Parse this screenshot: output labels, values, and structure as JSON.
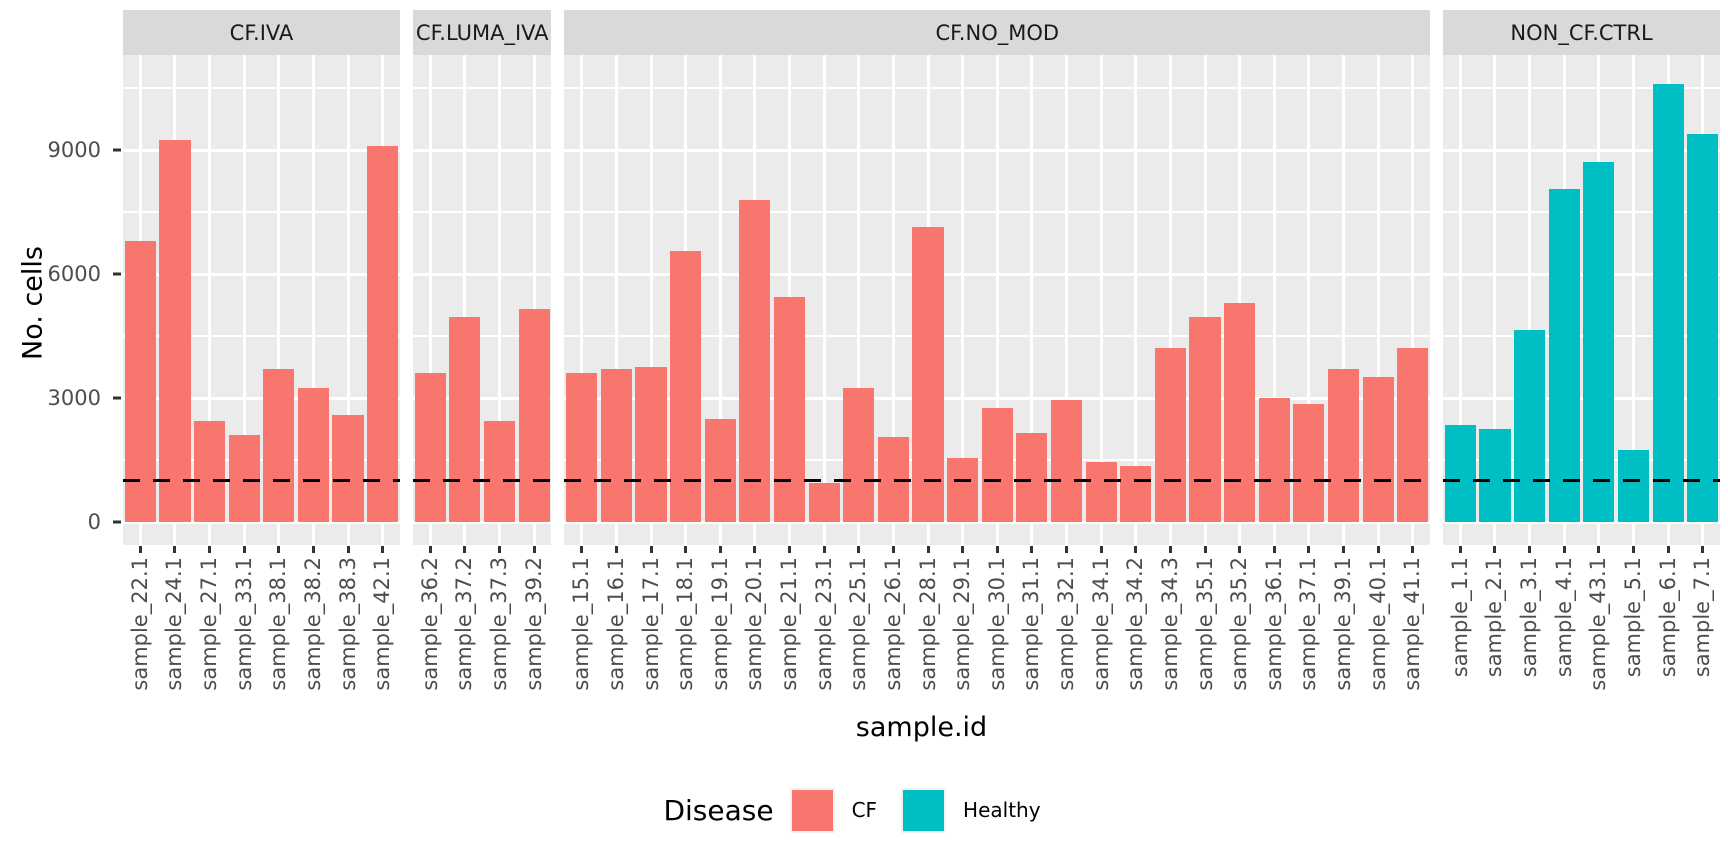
{
  "chart_data": {
    "type": "bar",
    "title": "",
    "xlabel": "sample.id",
    "ylabel": "No. cells",
    "y_ticks": [
      0,
      3000,
      6000,
      9000
    ],
    "y_minor_ticks": [
      1500,
      4500,
      7500,
      10500
    ],
    "ylim": [
      0,
      11300
    ],
    "grid": "on",
    "panel_bg_color": "#EBEBEB",
    "strip_bg_color": "#D9D9D9",
    "grid_color": "#FFFFFF",
    "tick_label_color": "#4D4D4D",
    "hline": {
      "value": 1000,
      "style": "dashed",
      "color": "#000000"
    },
    "legend": {
      "title": "Disease",
      "position": "bottom",
      "entries": [
        {
          "label": "CF",
          "color": "#F8766D"
        },
        {
          "label": "Healthy",
          "color": "#00BFC4"
        }
      ]
    },
    "facets": [
      {
        "label": "CF.IVA",
        "group": "CF",
        "color": "#F8766D",
        "categories": [
          "sample_22.1",
          "sample_24.1",
          "sample_27.1",
          "sample_33.1",
          "sample_38.1",
          "sample_38.2",
          "sample_38.3",
          "sample_42.1"
        ],
        "values": [
          6800,
          9250,
          2450,
          2100,
          3700,
          3250,
          2600,
          9100
        ]
      },
      {
        "label": "CF.LUMA_IVA",
        "group": "CF",
        "color": "#F8766D",
        "categories": [
          "sample_36.2",
          "sample_37.2",
          "sample_37.3",
          "sample_39.2"
        ],
        "values": [
          3600,
          4950,
          2450,
          5150
        ]
      },
      {
        "label": "CF.NO_MOD",
        "group": "CF",
        "color": "#F8766D",
        "categories": [
          "sample_15.1",
          "sample_16.1",
          "sample_17.1",
          "sample_18.1",
          "sample_19.1",
          "sample_20.1",
          "sample_21.1",
          "sample_23.1",
          "sample_25.1",
          "sample_26.1",
          "sample_28.1",
          "sample_29.1",
          "sample_30.1",
          "sample_31.1",
          "sample_32.1",
          "sample_34.1",
          "sample_34.2",
          "sample_34.3",
          "sample_35.1",
          "sample_35.2",
          "sample_36.1",
          "sample_37.1",
          "sample_39.1",
          "sample_40.1",
          "sample_41.1"
        ],
        "values": [
          3600,
          3700,
          3750,
          6550,
          2500,
          7800,
          5450,
          950,
          3250,
          2050,
          7150,
          1550,
          2750,
          2150,
          2950,
          1450,
          1350,
          4200,
          4950,
          5300,
          3000,
          2850,
          3700,
          3500,
          4200
        ]
      },
      {
        "label": "NON_CF.CTRL",
        "group": "Healthy",
        "color": "#00BFC4",
        "categories": [
          "sample_1.1",
          "sample_2.1",
          "sample_3.1",
          "sample_4.1",
          "sample_43.1",
          "sample_5.1",
          "sample_6.1",
          "sample_7.1"
        ],
        "values": [
          2350,
          2250,
          4650,
          8050,
          8700,
          1750,
          10600,
          9400
        ]
      }
    ]
  }
}
